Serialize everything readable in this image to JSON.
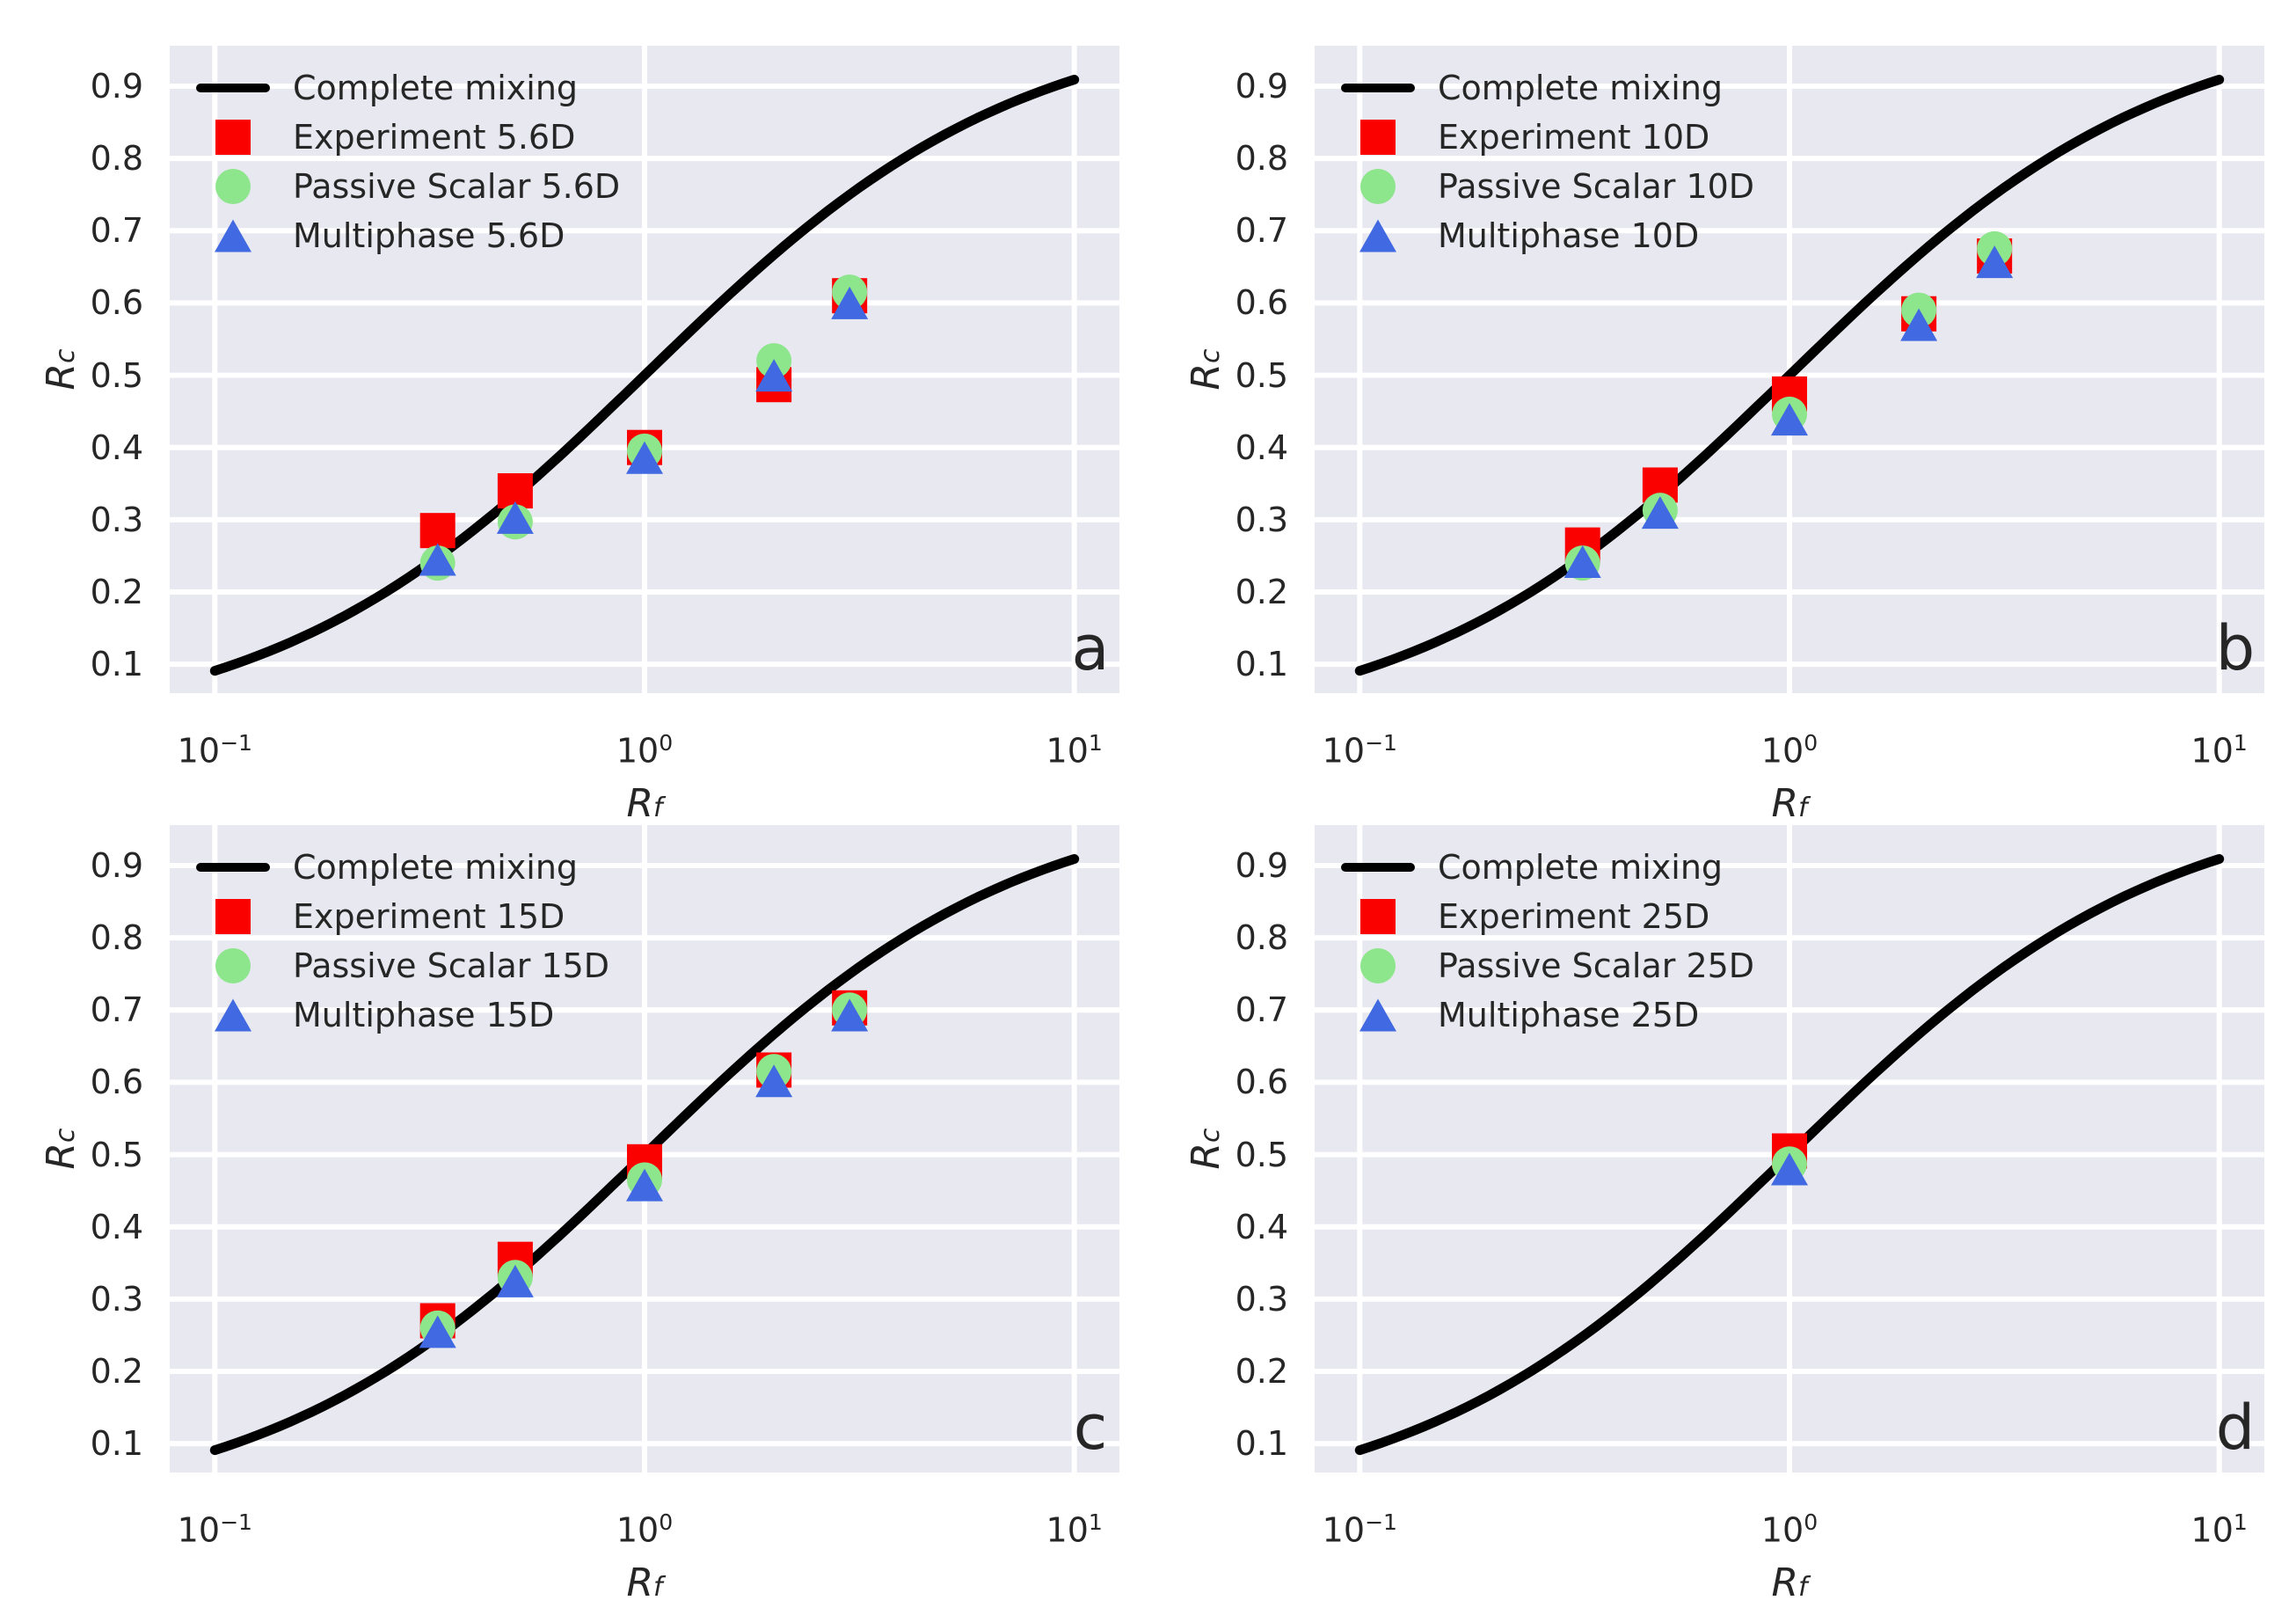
{
  "figure": {
    "background": "#ffffff",
    "axes_background": "#e8e8f1",
    "grid_color": "#ffffff",
    "text_color": "#262626",
    "colors": {
      "line": "#000000",
      "experiment": "#fa0100",
      "passive": "#8de58c",
      "multiphase": "#4169e1"
    }
  },
  "chart_data": {
    "type": "line+scatter",
    "x_axis": {
      "label_base": "R",
      "label_sub": "f",
      "scale": "log",
      "range_log": [
        -1.105,
        1.105
      ],
      "ticks": [
        {
          "base": "10",
          "exp": "−1",
          "value": 0.1
        },
        {
          "base": "10",
          "exp": "0",
          "value": 1
        },
        {
          "base": "10",
          "exp": "1",
          "value": 10
        }
      ],
      "grid": true
    },
    "y_axis": {
      "label_base": "R",
      "label_sub": "c",
      "range": [
        0.06,
        0.956
      ],
      "ticks": [
        {
          "text": "0.9",
          "value": 0.9
        },
        {
          "text": "0.8",
          "value": 0.8
        },
        {
          "text": "0.7",
          "value": 0.7
        },
        {
          "text": "0.6",
          "value": 0.6
        },
        {
          "text": "0.5",
          "value": 0.5
        },
        {
          "text": "0.4",
          "value": 0.4
        },
        {
          "text": "0.3",
          "value": 0.3
        },
        {
          "text": "0.2",
          "value": 0.2
        },
        {
          "text": "0.1",
          "value": 0.1
        }
      ],
      "grid": true
    },
    "mixing_curve": {
      "label": "Complete mixing",
      "definition": "Rc = Rf / (1 + Rf)",
      "x_start": 0.1,
      "x_end": 10
    },
    "panels": [
      {
        "letter": "a",
        "legend": [
          "Complete mixing",
          "Experiment 5.6D",
          "Passive Scalar 5.6D",
          "Multiphase 5.6D"
        ],
        "x": [
          0.33,
          0.5,
          1,
          2,
          3
        ],
        "series": [
          {
            "name": "Experiment 5.6D",
            "marker": "square",
            "color_key": "experiment",
            "values": [
              0.285,
              0.34,
              0.4,
              0.487,
              0.61
            ]
          },
          {
            "name": "Passive Scalar 5.6D",
            "marker": "circle",
            "color_key": "passive",
            "values": [
              0.24,
              0.297,
              0.395,
              0.52,
              0.615
            ]
          },
          {
            "name": "Multiphase 5.6D",
            "marker": "triangle",
            "color_key": "multiphase",
            "values": [
              0.245,
              0.303,
              0.386,
              0.5,
              0.6
            ]
          }
        ]
      },
      {
        "letter": "b",
        "legend": [
          "Complete mixing",
          "Experiment 10D",
          "Passive Scalar 10D",
          "Multiphase 10D"
        ],
        "x": [
          0.33,
          0.5,
          1,
          2,
          3
        ],
        "series": [
          {
            "name": "Experiment 10D",
            "marker": "square",
            "color_key": "experiment",
            "values": [
              0.265,
              0.348,
              0.474,
              0.585,
              0.665
            ]
          },
          {
            "name": "Passive Scalar 10D",
            "marker": "circle",
            "color_key": "passive",
            "values": [
              0.24,
              0.313,
              0.446,
              0.59,
              0.675
            ]
          },
          {
            "name": "Multiphase 10D",
            "marker": "triangle",
            "color_key": "multiphase",
            "values": [
              0.242,
              0.31,
              0.439,
              0.57,
              0.657
            ]
          }
        ]
      },
      {
        "letter": "c",
        "legend": [
          "Complete mixing",
          "Experiment 15D",
          "Passive Scalar 15D",
          "Multiphase 15D"
        ],
        "x": [
          0.33,
          0.5,
          1,
          2,
          3
        ],
        "series": [
          {
            "name": "Experiment 15D",
            "marker": "square",
            "color_key": "experiment",
            "values": [
              0.27,
              0.355,
              0.49,
              0.617,
              0.703
            ]
          },
          {
            "name": "Passive Scalar 15D",
            "marker": "circle",
            "color_key": "passive",
            "values": [
              0.26,
              0.33,
              0.465,
              0.615,
              0.7
            ]
          },
          {
            "name": "Multiphase 15D",
            "marker": "triangle",
            "color_key": "multiphase",
            "values": [
              0.255,
              0.325,
              0.458,
              0.602,
              0.693
            ]
          }
        ]
      },
      {
        "letter": "d",
        "legend": [
          "Complete mixing",
          "Experiment 25D",
          "Passive Scalar 25D",
          "Multiphase 25D"
        ],
        "x": [
          1
        ],
        "series": [
          {
            "name": "Experiment 25D",
            "marker": "square",
            "color_key": "experiment",
            "values": [
              0.505
            ]
          },
          {
            "name": "Passive Scalar 25D",
            "marker": "circle",
            "color_key": "passive",
            "values": [
              0.487
            ]
          },
          {
            "name": "Multiphase 25D",
            "marker": "triangle",
            "color_key": "multiphase",
            "values": [
              0.48
            ]
          }
        ]
      }
    ]
  }
}
